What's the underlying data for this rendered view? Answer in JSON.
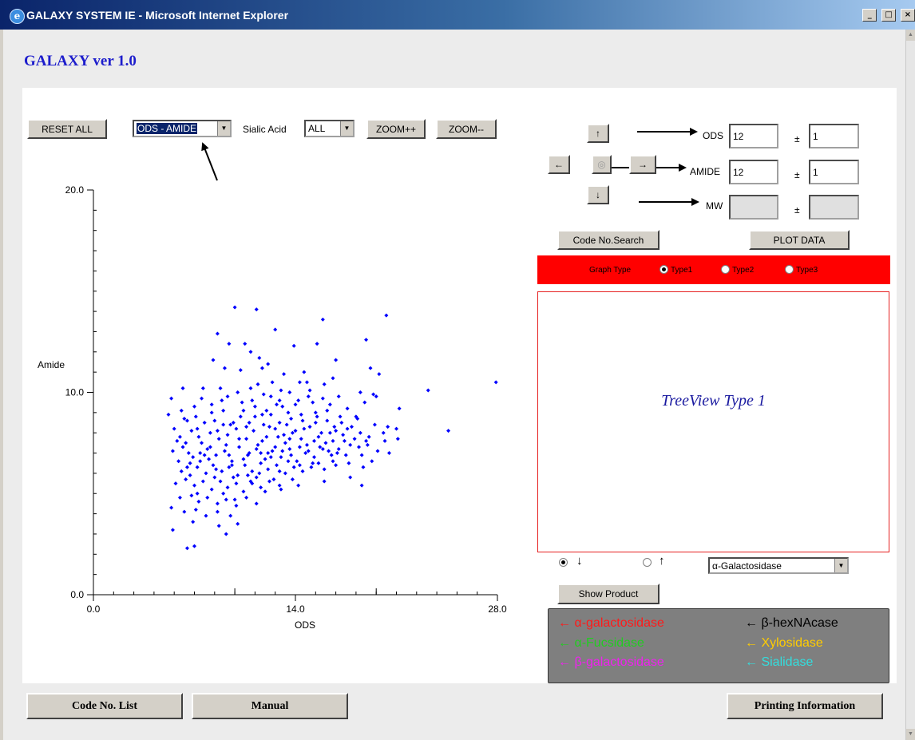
{
  "window": {
    "title": "GALAXY SYSTEM IE - Microsoft Internet Explorer",
    "min_glyph": "_",
    "max_glyph": "□",
    "close_glyph": "×",
    "icon_glyph": "e"
  },
  "app_title": "GALAXY ver 1.0",
  "toolbar": {
    "reset_label": "RESET ALL",
    "axis_select": "ODS - AMIDE",
    "sialic_label": "Sialic Acid",
    "sialic_select": "ALL",
    "zoom_in_label": "ZOOM++",
    "zoom_out_label": "ZOOM--",
    "dropdown_glyph": "▼"
  },
  "nav": {
    "up": "↑",
    "left": "←",
    "center": "◎",
    "right": "→",
    "down": "↓"
  },
  "search": {
    "ods_label": "ODS",
    "ods_value": "12",
    "ods_tol": "1",
    "amide_label": "AMIDE",
    "amide_value": "12",
    "amide_tol": "1",
    "mw_label": "MW",
    "mw_value": "",
    "mw_tol": "",
    "pm": "±",
    "code_search_label": "Code No.Search",
    "plot_data_label": "PLOT DATA"
  },
  "graph_type": {
    "label": "Graph Type",
    "options": [
      "Type1",
      "Type2",
      "Type3"
    ],
    "selected": 0
  },
  "treeview_title": "TreeView Type 1",
  "direction": {
    "down": "↓",
    "up": "↑",
    "selected": "down",
    "enzyme_select": "α-Galactosidase"
  },
  "show_product_label": "Show Product",
  "legend": [
    {
      "text": "← α-galactosidase",
      "color": "#ff1a1a"
    },
    {
      "text": "← β-hexNAcase",
      "color": "#000000"
    },
    {
      "text": "← α-Fucsidase",
      "color": "#22cc22"
    },
    {
      "text": "← Xylosidase",
      "color": "#ffcc00"
    },
    {
      "text": "← β-galactosidase",
      "color": "#ee22ee"
    },
    {
      "text": "← Sialidase",
      "color": "#33dddd"
    }
  ],
  "footer": {
    "code_list_label": "Code No. List",
    "manual_label": "Manual",
    "printing_label": "Printing Information"
  },
  "chart_data": {
    "type": "scatter",
    "title": "",
    "xlabel": "ODS",
    "ylabel": "Amide",
    "xlim": [
      0,
      28
    ],
    "ylim": [
      0,
      20
    ],
    "x_ticks": [
      "0.0",
      "14.0",
      "28.0"
    ],
    "y_ticks": [
      "0.0",
      "10.0",
      "20.0"
    ],
    "point_color": "#0000ff",
    "grid": false,
    "points": [
      [
        9.8,
        14.2
      ],
      [
        11.3,
        14.1
      ],
      [
        12.6,
        13.1
      ],
      [
        15.9,
        13.6
      ],
      [
        20.3,
        13.8
      ],
      [
        8.6,
        12.9
      ],
      [
        13.9,
        12.3
      ],
      [
        10.9,
        12.0
      ],
      [
        15.5,
        12.4
      ],
      [
        18.9,
        12.6
      ],
      [
        9.4,
        12.4
      ],
      [
        10.5,
        12.4
      ],
      [
        11.5,
        11.7
      ],
      [
        12.1,
        11.4
      ],
      [
        13.2,
        10.9
      ],
      [
        16.8,
        11.6
      ],
      [
        8.3,
        11.6
      ],
      [
        9.1,
        11.2
      ],
      [
        10.2,
        11.1
      ],
      [
        11.7,
        11.2
      ],
      [
        14.6,
        11.0
      ],
      [
        16.6,
        10.7
      ],
      [
        19.2,
        11.2
      ],
      [
        19.8,
        10.9
      ],
      [
        23.2,
        10.1
      ],
      [
        6.2,
        10.2
      ],
      [
        7.6,
        10.2
      ],
      [
        10.9,
        10.2
      ],
      [
        12.4,
        10.5
      ],
      [
        14.3,
        10.5
      ],
      [
        15.0,
        10.1
      ],
      [
        18.5,
        10.0
      ],
      [
        19.6,
        9.8
      ],
      [
        27.9,
        10.5
      ],
      [
        5.4,
        9.7
      ],
      [
        8.2,
        9.4
      ],
      [
        9.3,
        9.8
      ],
      [
        11.0,
        9.6
      ],
      [
        11.8,
        9.9
      ],
      [
        12.9,
        9.6
      ],
      [
        13.6,
        10.0
      ],
      [
        14.9,
        9.8
      ],
      [
        15.9,
        9.7
      ],
      [
        16.4,
        9.4
      ],
      [
        17.6,
        9.2
      ],
      [
        18.8,
        9.5
      ],
      [
        21.2,
        9.2
      ],
      [
        5.2,
        8.9
      ],
      [
        6.5,
        8.6
      ],
      [
        7.1,
        8.8
      ],
      [
        8.4,
        8.6
      ],
      [
        9.0,
        9.1
      ],
      [
        9.7,
        8.5
      ],
      [
        10.4,
        9.1
      ],
      [
        11.2,
        8.8
      ],
      [
        12.3,
        8.9
      ],
      [
        12.9,
        8.5
      ],
      [
        13.7,
        8.7
      ],
      [
        14.4,
        8.9
      ],
      [
        15.4,
        9.0
      ],
      [
        16.2,
        8.6
      ],
      [
        17.2,
        8.5
      ],
      [
        17.9,
        8.3
      ],
      [
        18.3,
        8.7
      ],
      [
        19.5,
        8.4
      ],
      [
        20.1,
        8.0
      ],
      [
        5.6,
        8.2
      ],
      [
        6.0,
        7.8
      ],
      [
        6.8,
        8.1
      ],
      [
        7.5,
        7.5
      ],
      [
        8.1,
        8.0
      ],
      [
        8.7,
        7.7
      ],
      [
        9.3,
        7.9
      ],
      [
        9.9,
        8.2
      ],
      [
        10.6,
        7.7
      ],
      [
        11.1,
        8.1
      ],
      [
        11.7,
        7.6
      ],
      [
        12.2,
        8.3
      ],
      [
        12.8,
        7.8
      ],
      [
        13.3,
        7.5
      ],
      [
        13.8,
        8.0
      ],
      [
        14.4,
        7.7
      ],
      [
        15.0,
        8.3
      ],
      [
        15.6,
        7.8
      ],
      [
        16.1,
        7.5
      ],
      [
        16.8,
        8.1
      ],
      [
        17.4,
        7.6
      ],
      [
        18.1,
        7.7
      ],
      [
        19.0,
        7.4
      ],
      [
        20.2,
        7.6
      ],
      [
        21.1,
        7.7
      ],
      [
        24.6,
        8.1
      ],
      [
        5.5,
        7.1
      ],
      [
        6.2,
        7.3
      ],
      [
        6.9,
        6.8
      ],
      [
        7.4,
        7.0
      ],
      [
        7.9,
        7.2
      ],
      [
        8.5,
        6.9
      ],
      [
        9.1,
        7.1
      ],
      [
        9.6,
        6.6
      ],
      [
        10.1,
        7.3
      ],
      [
        10.7,
        6.9
      ],
      [
        11.3,
        7.2
      ],
      [
        11.9,
        6.7
      ],
      [
        12.4,
        7.1
      ],
      [
        13.0,
        6.8
      ],
      [
        13.6,
        7.2
      ],
      [
        14.1,
        6.6
      ],
      [
        14.7,
        7.0
      ],
      [
        15.3,
        6.8
      ],
      [
        15.9,
        7.2
      ],
      [
        16.5,
        6.9
      ],
      [
        17.0,
        7.2
      ],
      [
        17.7,
        6.5
      ],
      [
        18.6,
        6.9
      ],
      [
        19.3,
        6.6
      ],
      [
        20.5,
        7.0
      ],
      [
        6.1,
        6.1
      ],
      [
        6.7,
        6.5
      ],
      [
        7.2,
        6.3
      ],
      [
        7.8,
        6.0
      ],
      [
        8.3,
        6.4
      ],
      [
        8.9,
        6.1
      ],
      [
        9.4,
        6.3
      ],
      [
        10.0,
        5.9
      ],
      [
        10.5,
        6.4
      ],
      [
        11.0,
        6.1
      ],
      [
        11.6,
        6.5
      ],
      [
        12.1,
        6.2
      ],
      [
        12.7,
        6.4
      ],
      [
        13.3,
        6.0
      ],
      [
        13.9,
        6.3
      ],
      [
        14.5,
        6.1
      ],
      [
        15.2,
        6.5
      ],
      [
        16.0,
        6.2
      ],
      [
        16.8,
        6.4
      ],
      [
        17.8,
        5.8
      ],
      [
        5.7,
        5.5
      ],
      [
        6.4,
        5.7
      ],
      [
        7.0,
        5.4
      ],
      [
        7.6,
        5.6
      ],
      [
        8.2,
        5.2
      ],
      [
        8.8,
        5.6
      ],
      [
        9.3,
        5.3
      ],
      [
        9.9,
        5.5
      ],
      [
        10.4,
        5.1
      ],
      [
        11.0,
        5.5
      ],
      [
        11.6,
        5.3
      ],
      [
        12.2,
        5.6
      ],
      [
        13.0,
        5.2
      ],
      [
        14.2,
        5.4
      ],
      [
        18.6,
        5.4
      ],
      [
        16.0,
        5.6
      ],
      [
        6.0,
        4.8
      ],
      [
        6.8,
        4.9
      ],
      [
        7.3,
        4.6
      ],
      [
        7.9,
        4.8
      ],
      [
        8.6,
        4.5
      ],
      [
        9.2,
        4.7
      ],
      [
        9.9,
        4.4
      ],
      [
        10.6,
        4.8
      ],
      [
        11.3,
        4.5
      ],
      [
        6.3,
        4.1
      ],
      [
        7.1,
        4.2
      ],
      [
        7.8,
        3.9
      ],
      [
        8.6,
        4.1
      ],
      [
        9.5,
        3.9
      ],
      [
        5.4,
        4.3
      ],
      [
        6.9,
        3.6
      ],
      [
        5.5,
        3.2
      ],
      [
        8.7,
        3.4
      ],
      [
        9.2,
        3.0
      ],
      [
        10.0,
        3.5
      ],
      [
        6.5,
        2.3
      ],
      [
        7.0,
        2.4
      ],
      [
        11.3,
        5.8
      ],
      [
        12.5,
        5.7
      ],
      [
        13.5,
        6.6
      ],
      [
        14.8,
        7.4
      ],
      [
        15.6,
        6.5
      ],
      [
        16.9,
        7.0
      ],
      [
        18.2,
        8.8
      ],
      [
        10.1,
        7.7
      ],
      [
        9.6,
        6.4
      ],
      [
        12.0,
        9.1
      ],
      [
        13.1,
        9.3
      ],
      [
        14.0,
        9.4
      ],
      [
        15.2,
        9.5
      ],
      [
        17.0,
        9.8
      ],
      [
        8.0,
        6.7
      ],
      [
        7.3,
        7.8
      ],
      [
        6.6,
        7.0
      ],
      [
        10.8,
        8.5
      ],
      [
        11.8,
        8.4
      ],
      [
        12.6,
        7.3
      ],
      [
        13.4,
        8.4
      ],
      [
        14.6,
        8.2
      ],
      [
        15.8,
        8.0
      ],
      [
        16.3,
        7.1
      ],
      [
        17.5,
        6.9
      ],
      [
        18.7,
        6.3
      ],
      [
        19.1,
        7.8
      ],
      [
        20.4,
        8.3
      ],
      [
        8.9,
        9.6
      ],
      [
        10.3,
        9.5
      ],
      [
        7.7,
        8.5
      ],
      [
        6.3,
        8.7
      ],
      [
        5.9,
        6.6
      ],
      [
        6.7,
        5.9
      ],
      [
        7.2,
        5.0
      ],
      [
        8.4,
        5.8
      ],
      [
        9.0,
        5.0
      ],
      [
        9.8,
        4.7
      ],
      [
        10.9,
        5.6
      ],
      [
        11.5,
        6.0
      ],
      [
        12.3,
        6.8
      ],
      [
        13.1,
        7.1
      ],
      [
        14.3,
        7.3
      ],
      [
        15.1,
        6.3
      ],
      [
        16.6,
        6.6
      ],
      [
        17.3,
        7.9
      ],
      [
        18.4,
        7.3
      ],
      [
        19.7,
        7.1
      ],
      [
        21.0,
        8.2
      ],
      [
        9.5,
        8.4
      ],
      [
        10.6,
        8.3
      ],
      [
        11.4,
        7.4
      ],
      [
        12.1,
        7.0
      ],
      [
        12.9,
        6.1
      ],
      [
        13.7,
        6.9
      ],
      [
        14.5,
        8.6
      ],
      [
        15.4,
        8.5
      ],
      [
        16.2,
        9.1
      ],
      [
        17.1,
        8.8
      ],
      [
        13.5,
        9.0
      ],
      [
        12.6,
        8.2
      ],
      [
        11.7,
        8.9
      ],
      [
        10.8,
        7.0
      ],
      [
        9.2,
        7.4
      ],
      [
        8.1,
        7.3
      ],
      [
        7.4,
        6.6
      ],
      [
        6.5,
        6.3
      ],
      [
        5.8,
        7.6
      ],
      [
        6.1,
        9.1
      ],
      [
        7.0,
        9.3
      ],
      [
        8.8,
        10.2
      ],
      [
        11.4,
        10.4
      ],
      [
        13.0,
        10.1
      ],
      [
        14.8,
        10.5
      ],
      [
        16.0,
        10.4
      ],
      [
        19.4,
        9.9
      ],
      [
        10.0,
        10.0
      ],
      [
        12.3,
        9.8
      ],
      [
        14.2,
        9.6
      ],
      [
        15.5,
        8.8
      ],
      [
        16.7,
        8.3
      ],
      [
        17.8,
        7.4
      ],
      [
        18.9,
        7.6
      ],
      [
        13.8,
        5.7
      ],
      [
        12.9,
        5.4
      ],
      [
        11.9,
        5.1
      ],
      [
        10.7,
        5.9
      ],
      [
        9.7,
        5.8
      ],
      [
        8.5,
        6.2
      ],
      [
        7.7,
        6.9
      ],
      [
        15.3,
        7.6
      ],
      [
        16.4,
        8.0
      ],
      [
        14.9,
        7.1
      ],
      [
        13.2,
        7.9
      ],
      [
        11.6,
        7.0
      ],
      [
        10.4,
        6.7
      ],
      [
        9.4,
        6.9
      ],
      [
        8.6,
        8.1
      ],
      [
        7.2,
        8.2
      ],
      [
        6.4,
        7.5
      ],
      [
        12.0,
        7.8
      ],
      [
        12.7,
        9.4
      ],
      [
        11.2,
        9.3
      ],
      [
        10.2,
        8.8
      ],
      [
        9.0,
        8.4
      ],
      [
        8.2,
        9.0
      ],
      [
        7.5,
        9.7
      ],
      [
        13.6,
        7.7
      ],
      [
        14.3,
        6.4
      ],
      [
        15.7,
        7.3
      ],
      [
        16.6,
        7.6
      ],
      [
        17.6,
        8.2
      ],
      [
        18.5,
        8.0
      ],
      [
        14.0,
        8.1
      ]
    ]
  }
}
